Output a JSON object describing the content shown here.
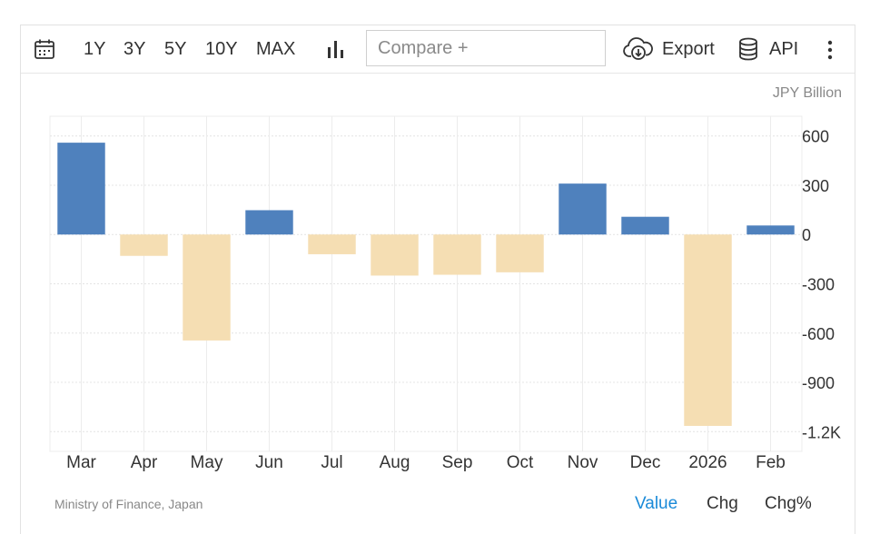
{
  "toolbar": {
    "ranges": [
      "1Y",
      "3Y",
      "5Y",
      "10Y",
      "MAX"
    ],
    "compare_placeholder": "Compare +",
    "export_label": "Export",
    "api_label": "API"
  },
  "chart_unit": "JPY Billion",
  "source": "Ministry of Finance, Japan",
  "footer_tabs": [
    {
      "label": "Value",
      "active": true
    },
    {
      "label": "Chg",
      "active": false
    },
    {
      "label": "Chg%",
      "active": false
    }
  ],
  "colors": {
    "positive": "#4f81bd",
    "negative": "#f5deb3",
    "active_tab": "#1a8ad8"
  },
  "chart_data": {
    "type": "bar",
    "categories": [
      "Mar",
      "Apr",
      "May",
      "Jun",
      "Jul",
      "Aug",
      "Sep",
      "Oct",
      "Nov",
      "Dec",
      "2026",
      "Feb"
    ],
    "values": [
      559,
      -130,
      -645,
      148,
      -120,
      -250,
      -245,
      -230,
      310,
      108,
      -1165,
      55
    ],
    "ylim": [
      -1320,
      720
    ],
    "yticks": [
      600,
      300,
      0,
      -300,
      -600,
      -900,
      -1200
    ],
    "ytick_labels": [
      "600",
      "300",
      "0",
      "-300",
      "-600",
      "-900",
      "-1.2K"
    ],
    "ylabel": "JPY Billion",
    "grid": true
  }
}
